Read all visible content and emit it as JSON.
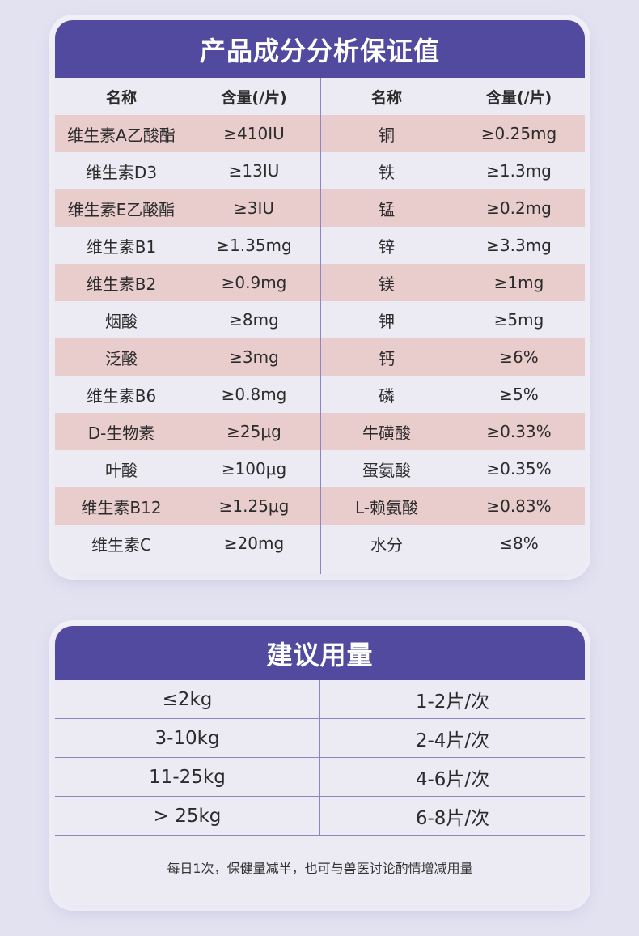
{
  "composition": {
    "title": "产品成分分析保证值",
    "headers": [
      "名称",
      "含量(/片)",
      "名称",
      "含量(/片)"
    ],
    "rows": [
      [
        "维生素A乙酸酯",
        "≥410IU",
        "铜",
        "≥0.25mg"
      ],
      [
        "维生素D3",
        "≥13IU",
        "铁",
        "≥1.3mg"
      ],
      [
        "维生素E乙酸酯",
        "≥3IU",
        "锰",
        "≥0.2mg"
      ],
      [
        "维生素B1",
        "≥1.35mg",
        "锌",
        "≥3.3mg"
      ],
      [
        "维生素B2",
        "≥0.9mg",
        "镁",
        "≥1mg"
      ],
      [
        "烟酸",
        "≥8mg",
        "钾",
        "≥5mg"
      ],
      [
        "泛酸",
        "≥3mg",
        "钙",
        "≥6%"
      ],
      [
        "维生素B6",
        "≥0.8mg",
        "磷",
        "≥5%"
      ],
      [
        "D-生物素",
        "≥25μg",
        "牛磺酸",
        "≥0.33%"
      ],
      [
        "叶酸",
        "≥100μg",
        "蛋氨酸",
        "≥0.35%"
      ],
      [
        "维生素B12",
        "≥1.25μg",
        "L-赖氨酸",
        "≥0.83%"
      ],
      [
        "维生素C",
        "≥20mg",
        "水分",
        "≤8%"
      ]
    ],
    "colors": {
      "header_bg": "#514a9e",
      "stripe_bg": "#e9cccc",
      "card_bg": "#ecebf3"
    }
  },
  "dosage": {
    "title": "建议用量",
    "rows": [
      [
        "≤2kg",
        "1-2片/次"
      ],
      [
        "3-10kg",
        "2-4片/次"
      ],
      [
        "11-25kg",
        "4-6片/次"
      ],
      [
        "> 25kg",
        "6-8片/次"
      ]
    ],
    "note": "每日1次，保健量减半，也可与兽医讨论酌情增减用量"
  }
}
